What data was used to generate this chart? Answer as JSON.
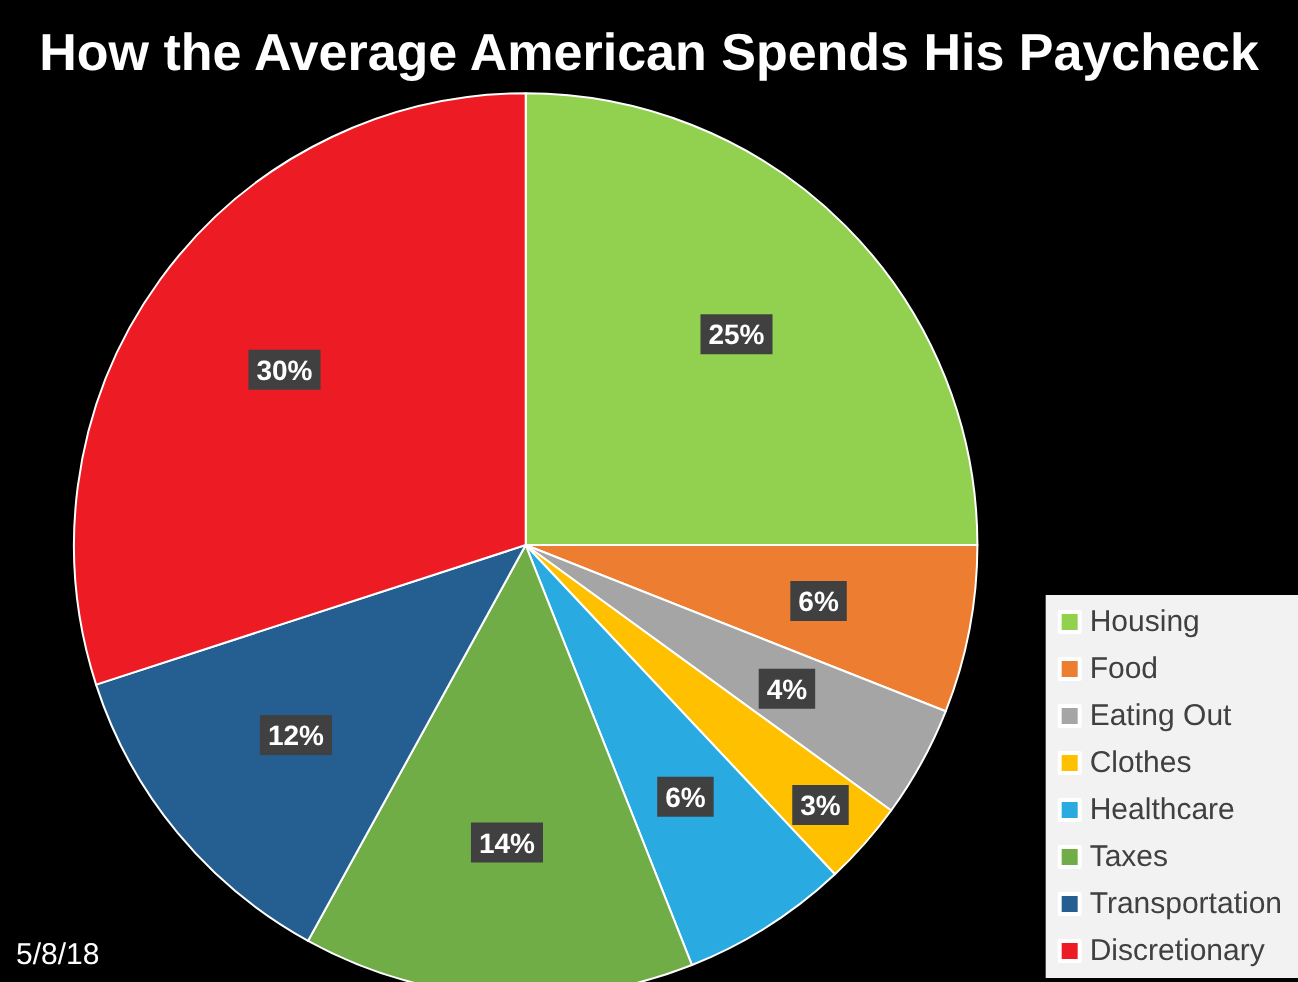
{
  "chart_data": {
    "type": "pie",
    "title": "How the Average American Spends His Paycheck",
    "categories": [
      "Housing",
      "Food",
      "Eating Out",
      "Clothes",
      "Healthcare",
      "Taxes",
      "Transportation",
      "Discretionary"
    ],
    "values": [
      25,
      6,
      4,
      3,
      6,
      14,
      12,
      30
    ],
    "value_labels": [
      "25%",
      "6%",
      "4%",
      "3%",
      "6%",
      "14%",
      "12%",
      "30%"
    ],
    "colors": [
      "#92d050",
      "#ed7d31",
      "#a5a5a5",
      "#ffc000",
      "#29abe2",
      "#70ad47",
      "#255e91",
      "#ed1c24"
    ],
    "legend": "bottom right",
    "annotations": [
      "5/8/18"
    ]
  }
}
